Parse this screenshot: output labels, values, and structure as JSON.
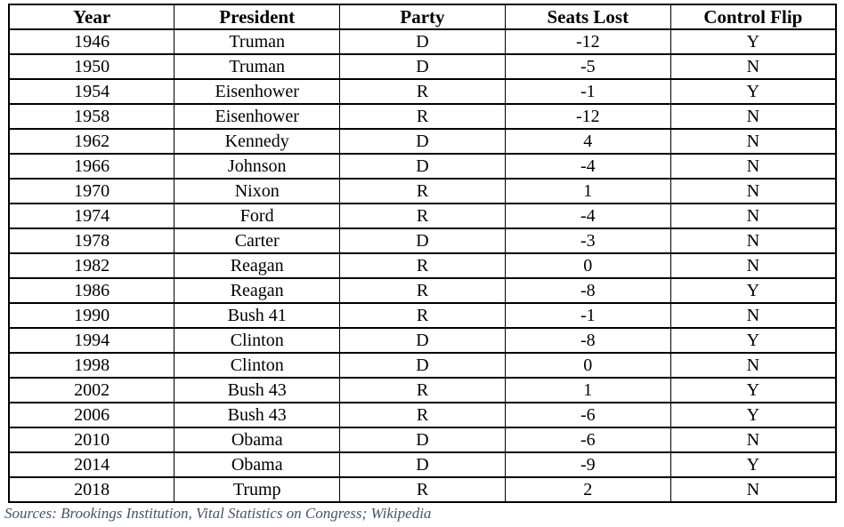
{
  "chart_data": {
    "type": "table",
    "title": "",
    "columns": [
      "Year",
      "President",
      "Party",
      "Seats Lost",
      "Control Flip"
    ],
    "rows": [
      [
        "1946",
        "Truman",
        "D",
        "-12",
        "Y"
      ],
      [
        "1950",
        "Truman",
        "D",
        "-5",
        "N"
      ],
      [
        "1954",
        "Eisenhower",
        "R",
        "-1",
        "Y"
      ],
      [
        "1958",
        "Eisenhower",
        "R",
        "-12",
        "N"
      ],
      [
        "1962",
        "Kennedy",
        "D",
        "4",
        "N"
      ],
      [
        "1966",
        "Johnson",
        "D",
        "-4",
        "N"
      ],
      [
        "1970",
        "Nixon",
        "R",
        "1",
        "N"
      ],
      [
        "1974",
        "Ford",
        "R",
        "-4",
        "N"
      ],
      [
        "1978",
        "Carter",
        "D",
        "-3",
        "N"
      ],
      [
        "1982",
        "Reagan",
        "R",
        "0",
        "N"
      ],
      [
        "1986",
        "Reagan",
        "R",
        "-8",
        "Y"
      ],
      [
        "1990",
        "Bush 41",
        "R",
        "-1",
        "N"
      ],
      [
        "1994",
        "Clinton",
        "D",
        "-8",
        "Y"
      ],
      [
        "1998",
        "Clinton",
        "D",
        "0",
        "N"
      ],
      [
        "2002",
        "Bush 43",
        "R",
        "1",
        "Y"
      ],
      [
        "2006",
        "Bush 43",
        "R",
        "-6",
        "Y"
      ],
      [
        "2010",
        "Obama",
        "D",
        "-6",
        "N"
      ],
      [
        "2014",
        "Obama",
        "D",
        "-9",
        "Y"
      ],
      [
        "2018",
        "Trump",
        "R",
        "2",
        "N"
      ]
    ]
  },
  "footer": {
    "sources": "Sources: Brookings Institution, Vital Statistics on Congress; Wikipedia"
  },
  "colors": {
    "background": "#ffffff",
    "table_border": "#000000",
    "cell_text": "#000000",
    "sources_text": "#44546a"
  }
}
